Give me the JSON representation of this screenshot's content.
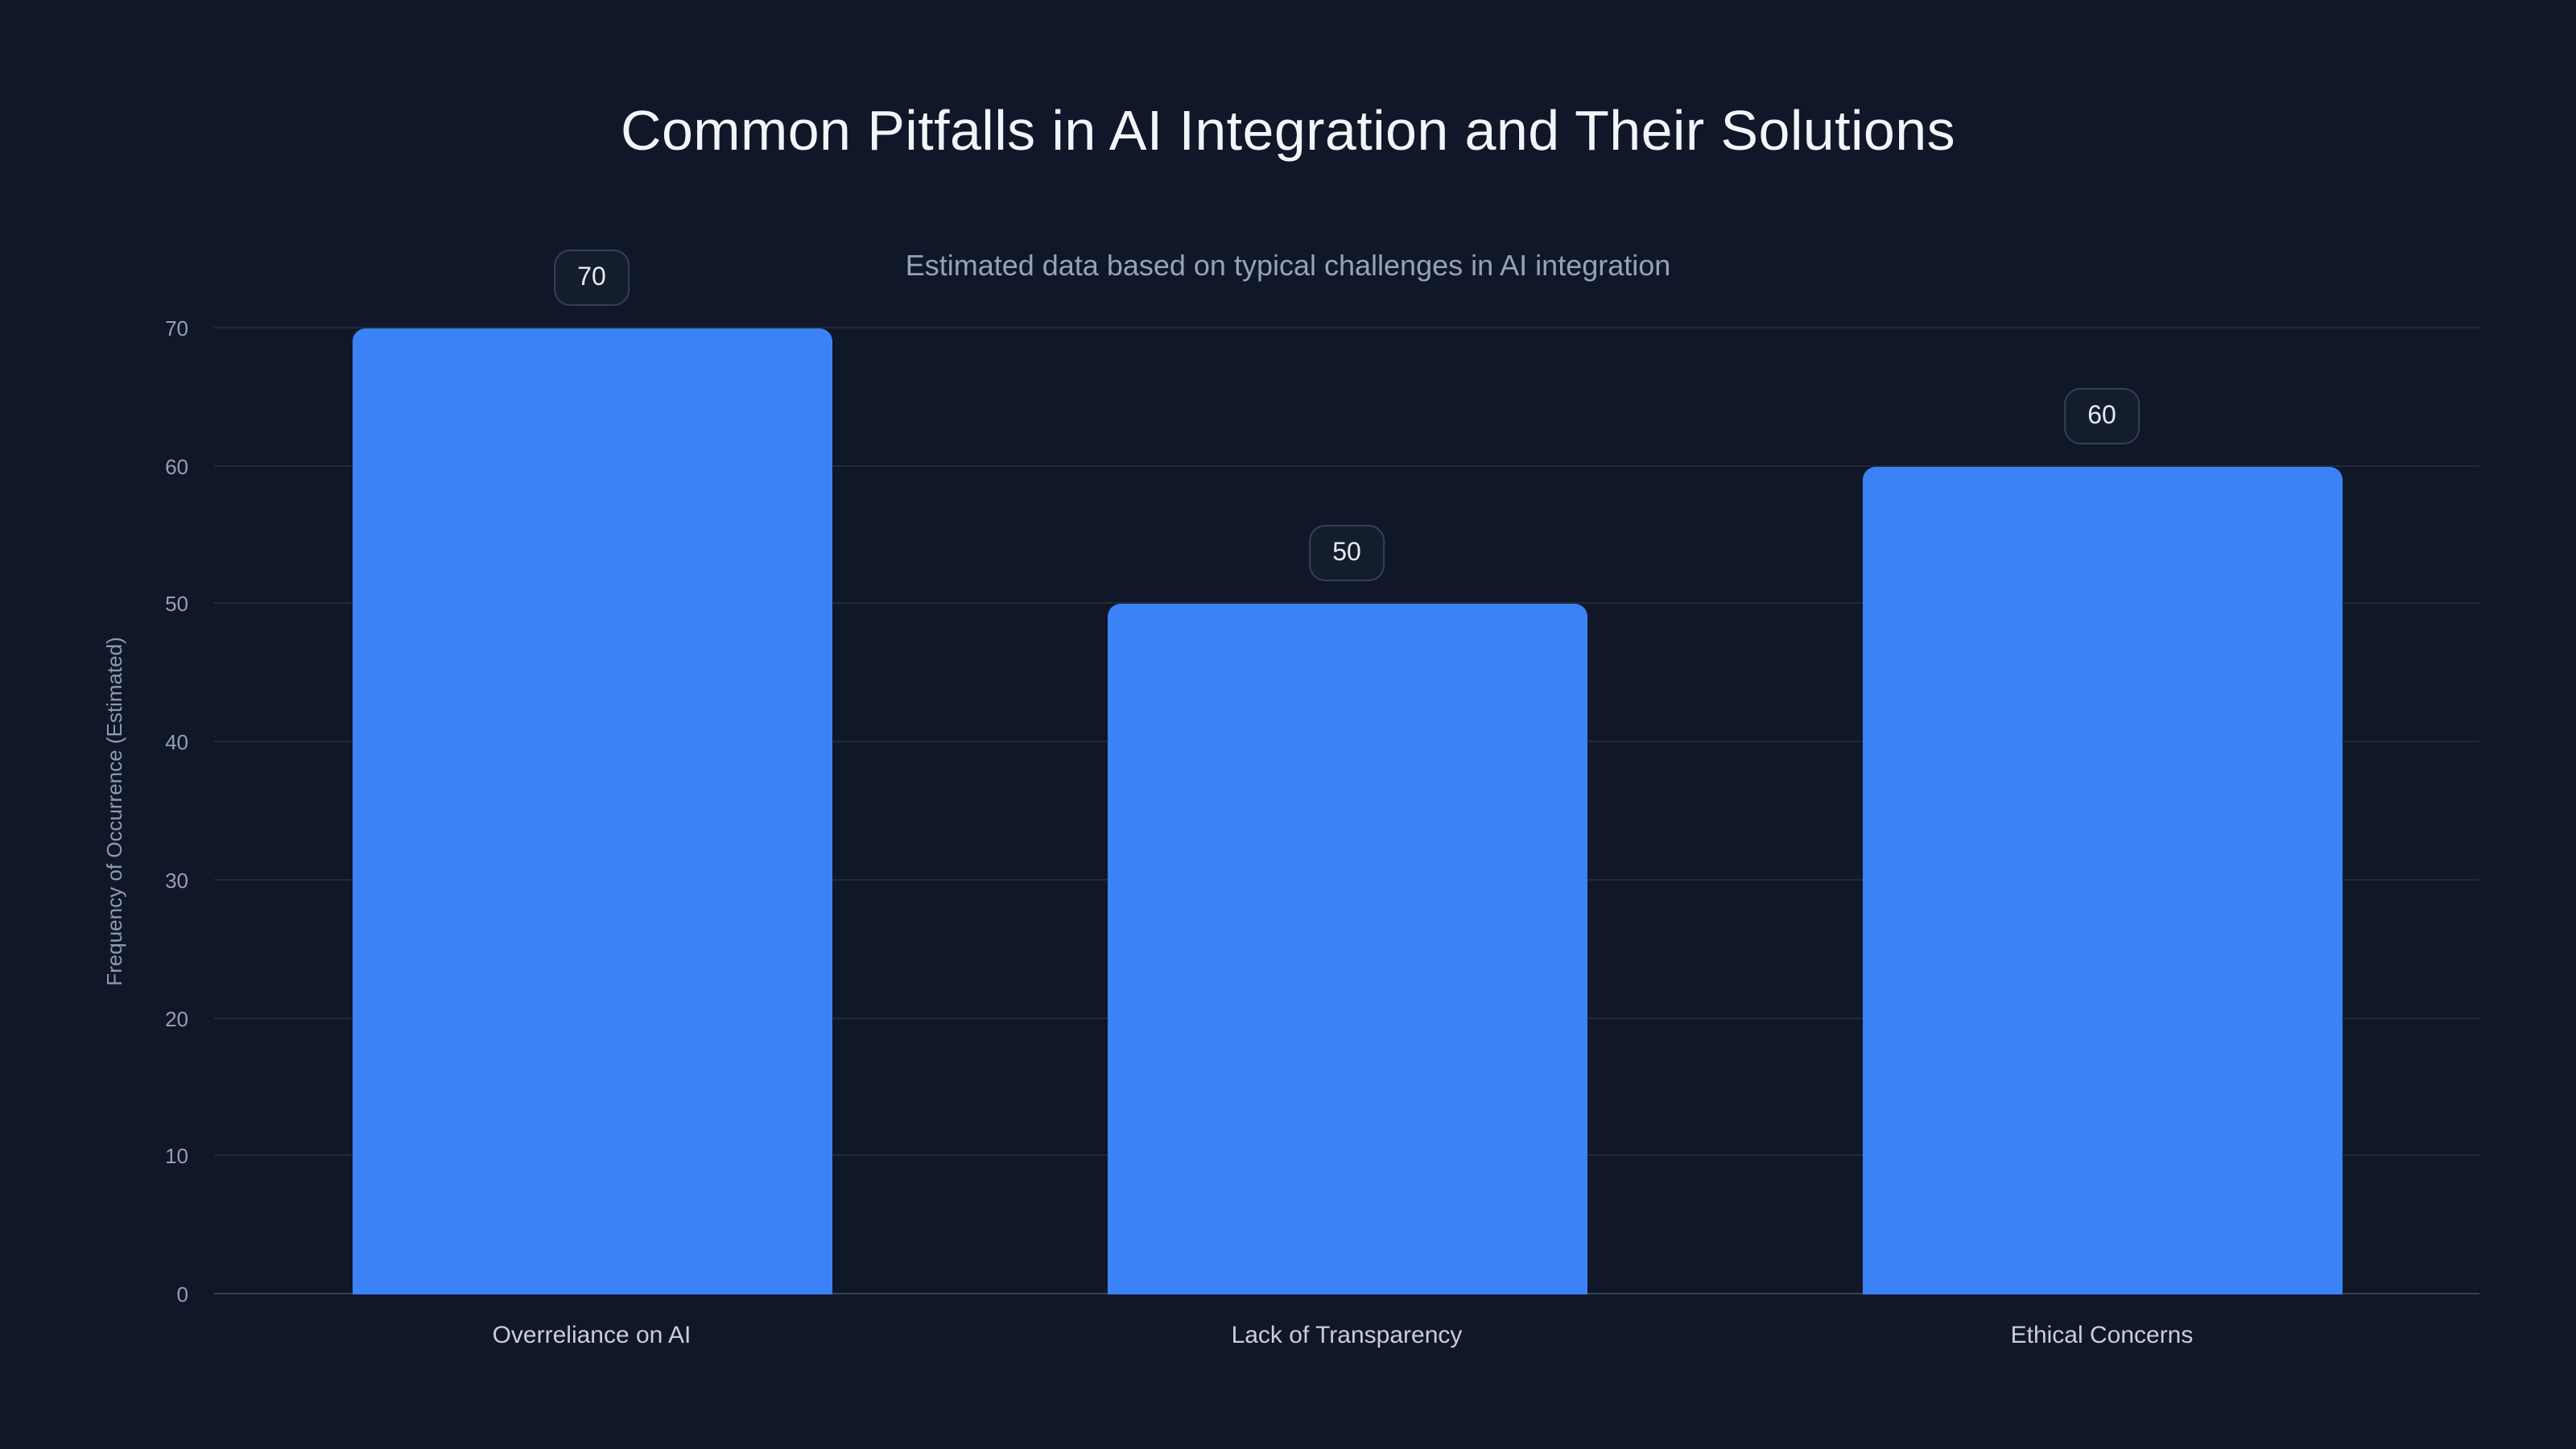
{
  "chart_data": {
    "type": "bar",
    "title": "Common Pitfalls in AI Integration and Their Solutions",
    "subtitle": "Estimated data based on typical challenges in AI integration",
    "categories": [
      "Overreliance on AI",
      "Lack of Transparency",
      "Ethical Concerns"
    ],
    "values": [
      70,
      50,
      60
    ],
    "data_labels": [
      "70",
      "50",
      "60"
    ],
    "xlabel": "",
    "ylabel": "Frequency of Occurrence (Estimated)",
    "ylim": [
      0,
      70
    ],
    "yticks": [
      0,
      10,
      20,
      30,
      40,
      50,
      60,
      70
    ],
    "grid": true,
    "legend": false,
    "colors": {
      "background": "#101728",
      "bar": "#3b82f6",
      "title_text": "#f2f5f9",
      "subtitle_text": "#94a3b8",
      "tick_text": "#93a1b3",
      "category_text": "#c6cfdb",
      "badge_border": "#33405a",
      "badge_background": "#141d2c",
      "gridline": "rgba(148,163,184,0.13)"
    }
  }
}
